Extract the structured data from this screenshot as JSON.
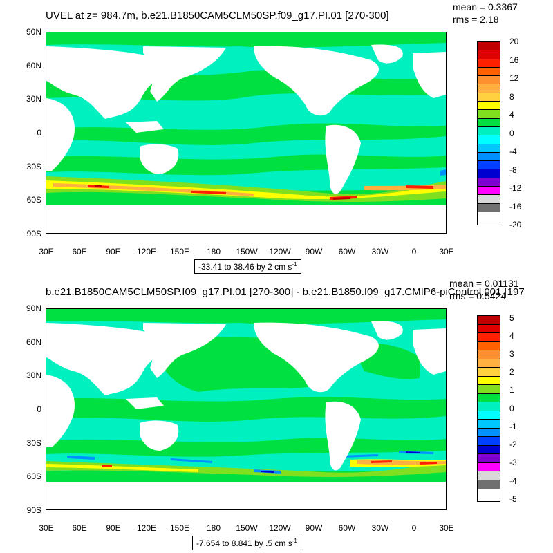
{
  "panels": [
    {
      "title": "UVEL at z= 984.7m, b.e21.B1850CAM5CLM50SP.f09_g17.PI.01 [270-300]",
      "mean": "mean = 0.3367",
      "rms": "rms = 2.18",
      "range_note": "-33.41 to 38.46 by 2 cm s",
      "range_unit_exp": "-1",
      "colorbar_labels": [
        "20",
        "16",
        "12",
        "8",
        "4",
        "0",
        "-4",
        "-8",
        "-12",
        "-16",
        "-20"
      ]
    },
    {
      "title": "b.e21.B1850CAM5CLM50SP.f09_g17.PI.01 [270-300] - b.e21.B1850.f09_g17.CMIP6-piControl.001 [197",
      "mean": "mean = 0.01131",
      "rms": "rms = 0.5424",
      "range_note": "-7.654 to 8.841 by .5 cm s",
      "range_unit_exp": "-1",
      "colorbar_labels": [
        "5",
        "4",
        "3",
        "2",
        "1",
        "0",
        "-1",
        "-2",
        "-3",
        "-4",
        "-5"
      ]
    }
  ],
  "y_labels": [
    "90N",
    "60N",
    "30N",
    "0",
    "30S",
    "60S",
    "90S"
  ],
  "x_labels": [
    "30E",
    "60E",
    "90E",
    "120E",
    "150E",
    "180",
    "150W",
    "120W",
    "90W",
    "60W",
    "30W",
    "0",
    "30E"
  ],
  "colorbar_colors": [
    "#c00000",
    "#e00000",
    "#ff2000",
    "#ff6000",
    "#ff9030",
    "#ffb040",
    "#ffd040",
    "#ffff00",
    "#80e020",
    "#00e040",
    "#00f0c0",
    "#00ffff",
    "#00c8ff",
    "#0090ff",
    "#0040ff",
    "#0000d0",
    "#8000d0",
    "#ff00ff",
    "#d8d8d8",
    "#707070"
  ],
  "map_colors": {
    "land": "#ffffff",
    "background": "#00f0c0",
    "green": "#00e040",
    "lightgreen": "#80e020",
    "yellow": "#ffff00",
    "orange": "#ffb040",
    "red": "#ff2000",
    "darkred": "#c00000",
    "blue": "#0090ff",
    "darkblue": "#0000d0",
    "magenta": "#ff00ff"
  }
}
